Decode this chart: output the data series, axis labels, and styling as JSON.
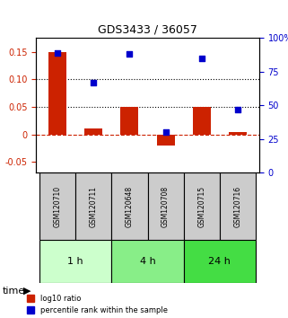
{
  "title": "GDS3433 / 36057",
  "samples": [
    "GSM120710",
    "GSM120711",
    "GSM120648",
    "GSM120708",
    "GSM120715",
    "GSM120716"
  ],
  "log10_ratio": [
    0.15,
    0.01,
    0.05,
    -0.02,
    0.05,
    0.005
  ],
  "percentile_rank": [
    0.89,
    0.67,
    0.88,
    0.3,
    0.85,
    0.47
  ],
  "bar_color": "#cc2200",
  "dot_color": "#0000cc",
  "ylim_left": [
    -0.07,
    0.175
  ],
  "ylim_right": [
    0,
    100
  ],
  "yticks_left": [
    -0.05,
    0,
    0.05,
    0.1,
    0.15
  ],
  "yticks_right": [
    0,
    25,
    50,
    75,
    100
  ],
  "ytick_labels_left": [
    "-0.05",
    "0",
    "0.05",
    "0.10",
    "0.15"
  ],
  "ytick_labels_right": [
    "0",
    "25",
    "50",
    "75",
    "100%"
  ],
  "hlines": [
    0.05,
    0.1
  ],
  "groups": [
    {
      "label": "1 h",
      "samples": [
        0,
        1
      ],
      "color": "#ccffcc"
    },
    {
      "label": "4 h",
      "samples": [
        2,
        3
      ],
      "color": "#88ee88"
    },
    {
      "label": "24 h",
      "samples": [
        4,
        5
      ],
      "color": "#44dd44"
    }
  ],
  "legend_labels": [
    "log10 ratio",
    "percentile rank within the sample"
  ],
  "time_label": "time",
  "bar_width": 0.5
}
